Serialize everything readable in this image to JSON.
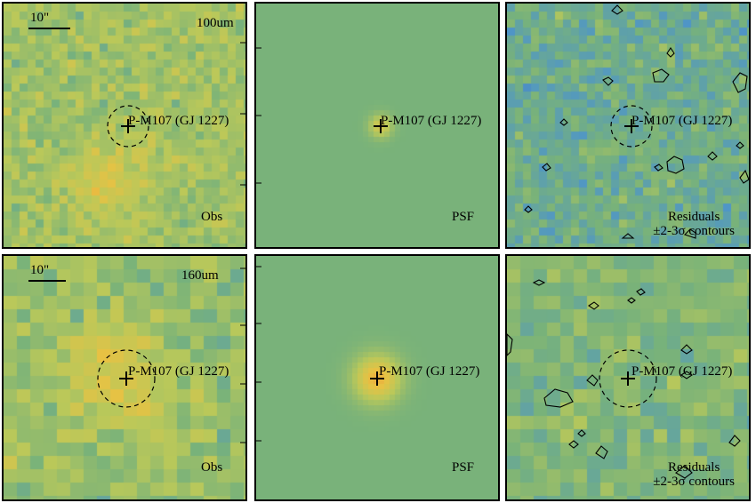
{
  "figure": {
    "target_name": "P-M107 (GJ 1227)",
    "scale_bar_label": "10\"",
    "rows": [
      {
        "band": "100um",
        "panels": [
          {
            "kind": "obs",
            "label": "Obs"
          },
          {
            "kind": "psf",
            "label": "PSF"
          },
          {
            "kind": "residuals",
            "label_line1": "Residuals",
            "label_line2": "±2-3σ contours"
          }
        ]
      },
      {
        "band": "160um",
        "panels": [
          {
            "kind": "obs",
            "label": "Obs"
          },
          {
            "kind": "psf",
            "label": "PSF"
          },
          {
            "kind": "residuals",
            "label_line1": "Residuals",
            "label_line2": "±2-3σ contours"
          }
        ]
      }
    ],
    "colormap": [
      "#3b1f8e",
      "#3d5fb0",
      "#4f96c7",
      "#78b27a",
      "#b9c85a",
      "#e8c243",
      "#ef8b35",
      "#e23a2a"
    ]
  }
}
